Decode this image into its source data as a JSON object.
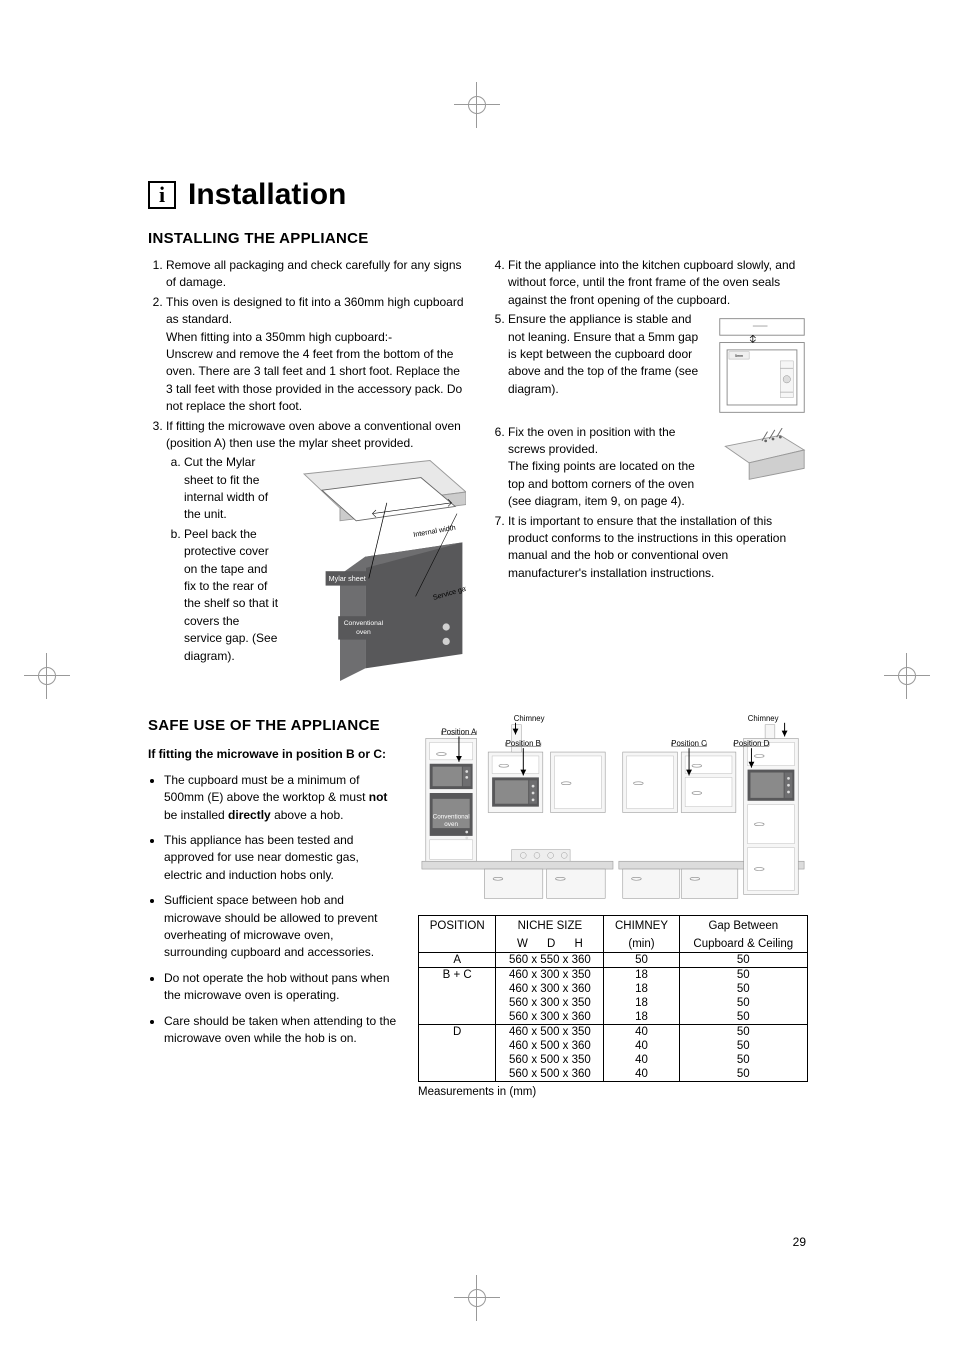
{
  "page_number": "29",
  "title": "Installation",
  "info_icon_glyph": "i",
  "section1_heading": "INSTALLING THE APPLIANCE",
  "left_list": {
    "i1": "Remove all packaging and check carefully for any signs of damage.",
    "i2a": "This oven is designed to fit into a 360mm high cupboard as standard.",
    "i2b": "When fitting into a 350mm high cupboard:-",
    "i2c": "Unscrew and remove the 4 feet from the bottom of the oven. There are 3 tall feet and 1 short foot. Replace the 3 tall feet with those provided in the accessory pack. Do not replace the short foot.",
    "i3": "If fitting the microwave oven above a conventional oven (position A) then use the mylar sheet provided.",
    "i3a": "Cut the Mylar sheet to fit the internal width of the unit.",
    "i3b": "Peel back the protective cover on the tape and fix to the rear of the shelf so that it covers the service gap. (See diagram)."
  },
  "right_list": {
    "i4": "Fit the appliance into the kitchen cupboard slowly, and without force, until the front frame of the oven seals against the front opening of the cupboard.",
    "i5": "Ensure the appliance is stable and not leaning. Ensure that a 5mm gap is kept between the cupboard door above and the top of the frame (see diagram).",
    "i6a": "Fix the oven in position with the screws provided.",
    "i6b": "The fixing points are located on the top and bottom corners of the oven (see diagram, item 9, on page 4).",
    "i7": "It is important to ensure that the installation of this product conforms to the instructions in this operation manual and the hob or conventional oven manufacturer's installation instructions."
  },
  "mylar_diagram": {
    "label_mylar": "Mylar sheet",
    "label_internal": "Internal width",
    "label_service": "Service gap",
    "label_oven": "Conventional oven",
    "colors": {
      "dark": "#58585a",
      "mid": "#b9b9b9",
      "light": "#e8e8e8",
      "line": "#000000"
    }
  },
  "gap_diagram": {
    "label_5mm": "5mm"
  },
  "section2_heading": "SAFE USE OF THE APPLIANCE",
  "safe_sub": "If fitting the microwave in position B or C:",
  "safe_bullets": {
    "b1a": "The cupboard must be a minimum of 500mm (E) above the worktop & must ",
    "b1_not": "not",
    "b1b": " be installed ",
    "b1_directly": "directly",
    "b1c": " above a hob.",
    "b2": "This appliance has been tested and approved for use near domestic gas, electric and induction hobs only.",
    "b3": "Sufficient space between hob and microwave should be allowed to prevent overheating of microwave oven, surrounding cupboard and accessories.",
    "b4": "Do not operate the hob without pans when the microwave oven is operating.",
    "b5": "Care should be taken when attending to the microwave oven while the hob is on."
  },
  "positions_diagram": {
    "chimney": "Chimney",
    "posA": "Position A",
    "posB": "Position B",
    "posC": "Position C",
    "posD": "Position D",
    "conv_oven": "Conventional oven",
    "colors": {
      "cabinet_line": "#9a9a9a",
      "cabinet_fill": "#f2f2f2",
      "worktop": "#dcdcdc",
      "oven_dark": "#58585a",
      "oven_mid": "#8a8a8a",
      "text": "#000000"
    }
  },
  "dims_table": {
    "headers": {
      "pos": "POSITION",
      "niche": "NICHE SIZE",
      "w": "W",
      "d": "D",
      "h": "H",
      "chimney": "CHIMNEY",
      "min": "(min)",
      "gap": "Gap Between",
      "gap2": "Cupboard & Ceiling"
    },
    "rows": [
      {
        "pos": "A",
        "niche": "560 x 550 x 360",
        "chimney": "50",
        "gap": "50",
        "sep": true
      },
      {
        "pos": "B + C",
        "niche": "460 x 300 x 350",
        "chimney": "18",
        "gap": "50",
        "sep": true
      },
      {
        "pos": "",
        "niche": "460 x 300 x 360",
        "chimney": "18",
        "gap": "50"
      },
      {
        "pos": "",
        "niche": "560 x 300 x 350",
        "chimney": "18",
        "gap": "50"
      },
      {
        "pos": "",
        "niche": "560 x 300 x 360",
        "chimney": "18",
        "gap": "50"
      },
      {
        "pos": "D",
        "niche": "460 x 500 x 350",
        "chimney": "40",
        "gap": "50",
        "sep": true
      },
      {
        "pos": "",
        "niche": "460 x 500 x 360",
        "chimney": "40",
        "gap": "50"
      },
      {
        "pos": "",
        "niche": "560 x 500 x 350",
        "chimney": "40",
        "gap": "50"
      },
      {
        "pos": "",
        "niche": "560 x 500 x 360",
        "chimney": "40",
        "gap": "50"
      }
    ],
    "caption": "Measurements in (mm)"
  }
}
